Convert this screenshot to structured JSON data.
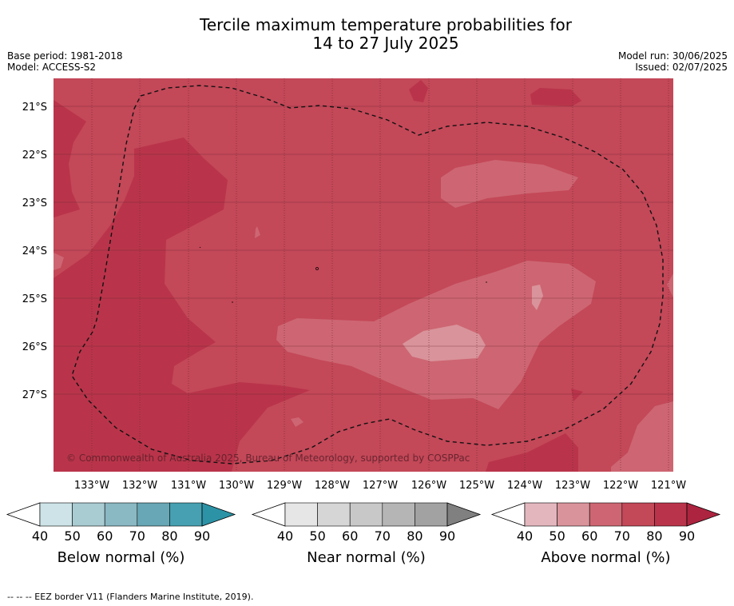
{
  "title": {
    "line1": "Tercile maximum temperature probabilities for",
    "line2": "14 to 27 July 2025"
  },
  "meta": {
    "base_period": "Base period: 1981-2018",
    "model": "Model: ACCESS-S2",
    "model_run": "Model run: 30/06/2025",
    "issued": "Issued: 02/07/2025"
  },
  "map": {
    "lat_labels": [
      "21°S",
      "22°S",
      "23°S",
      "24°S",
      "25°S",
      "26°S",
      "27°S"
    ],
    "lon_labels": [
      "133°W",
      "132°W",
      "131°W",
      "130°W",
      "129°W",
      "128°W",
      "127°W",
      "126°W",
      "125°W",
      "124°W",
      "123°W",
      "122°W",
      "121°W"
    ],
    "copyright": "© Commonwealth of Australia 2025, Bureau of Meteorology, supported by COSPPac",
    "colors": {
      "above_80": "#b9344a",
      "above_70": "#c34858",
      "above_60": "#cd6672",
      "above_50": "#d9939b",
      "grid": "#6b2733"
    }
  },
  "colorbars": [
    {
      "name": "Below normal (%)",
      "ticks": [
        "40",
        "50",
        "60",
        "70",
        "80",
        "90"
      ],
      "colors": [
        "#ffffff",
        "#cde3e7",
        "#a9cbd2",
        "#8ab8c3",
        "#68a7b5",
        "#46a0b1",
        "#2c93a6"
      ]
    },
    {
      "name": "Near normal (%)",
      "ticks": [
        "40",
        "50",
        "60",
        "70",
        "80",
        "90"
      ],
      "colors": [
        "#ffffff",
        "#e6e6e6",
        "#d6d6d6",
        "#c8c8c8",
        "#b5b5b5",
        "#a2a2a2",
        "#808080"
      ]
    },
    {
      "name": "Above normal (%)",
      "ticks": [
        "40",
        "50",
        "60",
        "70",
        "80",
        "90"
      ],
      "colors": [
        "#ffffff",
        "#e3b6be",
        "#d9939b",
        "#cd6672",
        "#c34858",
        "#b9344a",
        "#ad2440"
      ]
    }
  ],
  "footer": "--  --  -- EEZ border V11 (Flanders Marine Institute, 2019)."
}
